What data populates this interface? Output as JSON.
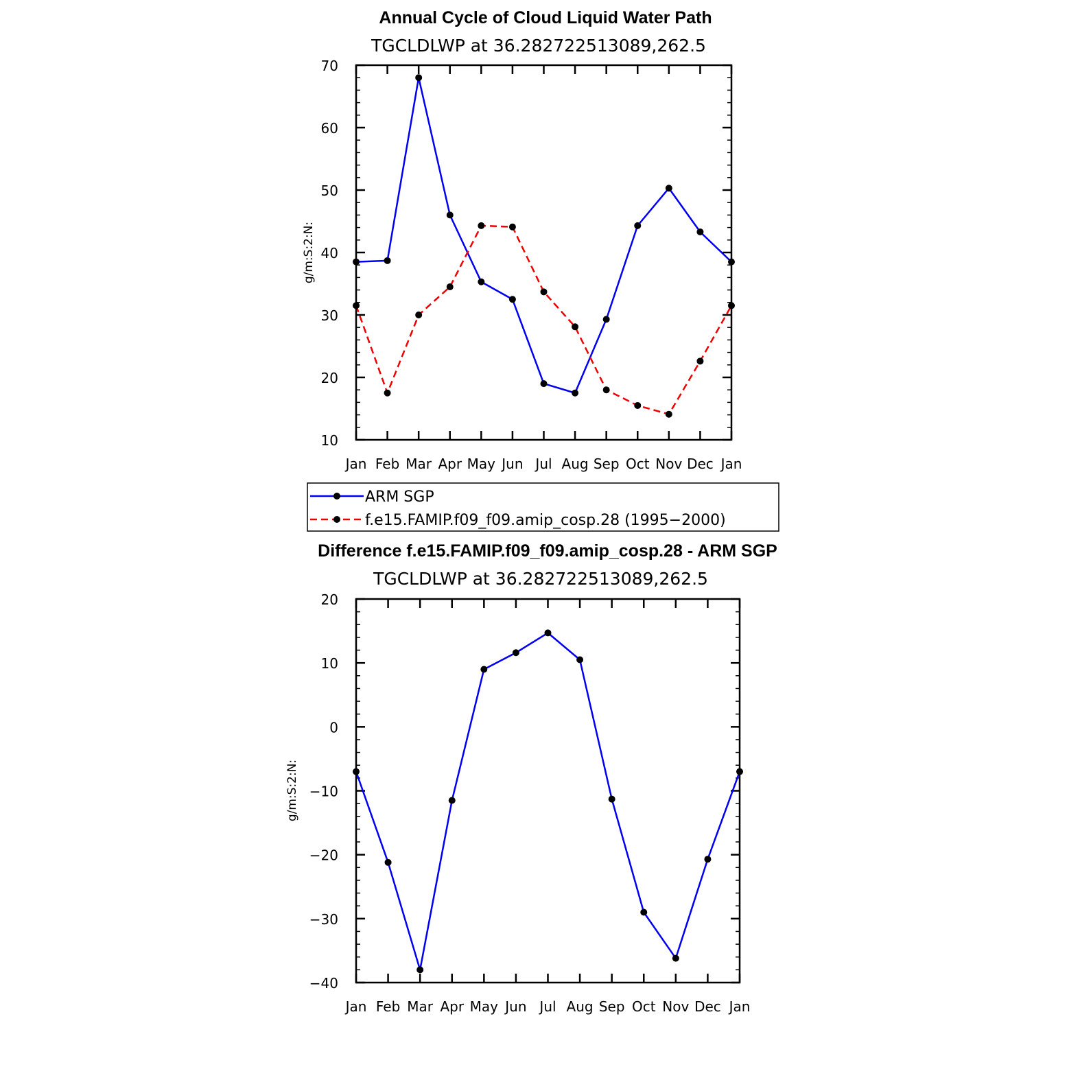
{
  "chart_data": [
    {
      "type": "line",
      "title": "Annual Cycle of Cloud Liquid Water Path",
      "subtitle": "TGCLDLWP  at  36.282722513089,262.5",
      "xlabel": "",
      "ylabel": "g/m:S:2:N:",
      "categories": [
        "Jan",
        "Feb",
        "Mar",
        "Apr",
        "May",
        "Jun",
        "Jul",
        "Aug",
        "Sep",
        "Oct",
        "Nov",
        "Dec",
        "Jan"
      ],
      "ylim": [
        10,
        70
      ],
      "yticks": [
        10,
        20,
        30,
        40,
        50,
        60,
        70
      ],
      "series": [
        {
          "name": "ARM SGP",
          "color": "#0000ee",
          "dash": "solid",
          "values": [
            38.5,
            38.7,
            68.0,
            46.0,
            35.3,
            32.5,
            19.0,
            17.5,
            29.3,
            44.3,
            50.3,
            43.3,
            38.5
          ]
        },
        {
          "name": "f.e15.FAMIP.f09_f09.amip_cosp.28 (1995−2000)",
          "color": "#ee0000",
          "dash": "dashed",
          "values": [
            31.5,
            17.5,
            30.0,
            34.5,
            44.3,
            44.1,
            33.7,
            28.1,
            18.0,
            15.5,
            14.1,
            22.6,
            31.5
          ]
        }
      ],
      "legend": "below"
    },
    {
      "type": "line",
      "title": "Difference f.e15.FAMIP.f09_f09.amip_cosp.28 - ARM SGP",
      "subtitle": "TGCLDLWP  at  36.282722513089,262.5",
      "xlabel": "",
      "ylabel": "g/m:S:2:N:",
      "categories": [
        "Jan",
        "Feb",
        "Mar",
        "Apr",
        "May",
        "Jun",
        "Jul",
        "Aug",
        "Sep",
        "Oct",
        "Nov",
        "Dec",
        "Jan"
      ],
      "ylim": [
        -40,
        20
      ],
      "yticks": [
        -40,
        -30,
        -20,
        -10,
        0,
        10,
        20
      ],
      "ytick_labels": [
        "−40",
        "−30",
        "−20",
        "−10",
        "0",
        "10",
        "20"
      ],
      "series": [
        {
          "color": "#0000ee",
          "dash": "solid",
          "values": [
            -7.0,
            -21.2,
            -38.0,
            -11.5,
            9.0,
            11.6,
            14.7,
            10.5,
            -11.3,
            -29.0,
            -36.2,
            -20.7,
            -7.0
          ]
        }
      ]
    }
  ]
}
